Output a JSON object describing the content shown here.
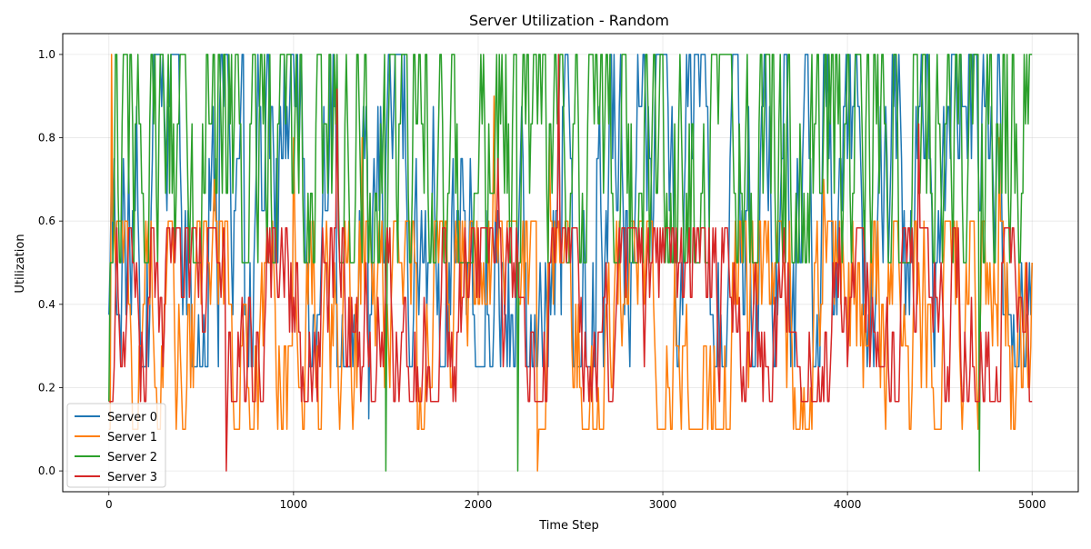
{
  "chart_data": {
    "type": "line",
    "title": "Server Utilization - Random",
    "xlabel": "Time Step",
    "ylabel": "Utilization",
    "xlim": [
      -250,
      5250
    ],
    "ylim": [
      -0.05,
      1.05
    ],
    "xticks": [
      0,
      1000,
      2000,
      3000,
      4000,
      5000
    ],
    "yticks": [
      0.0,
      0.2,
      0.4,
      0.6,
      0.8,
      1.0
    ],
    "xtick_labels": [
      "0",
      "1000",
      "2000",
      "3000",
      "4000",
      "5000"
    ],
    "ytick_labels": [
      "0.0",
      "0.2",
      "0.4",
      "0.6",
      "0.8",
      "1.0"
    ],
    "grid": true,
    "legend_position": "lower-left",
    "x_range": [
      0,
      5000
    ],
    "series": [
      {
        "name": "Server 0",
        "color": "#1f77b4",
        "levels": [
          0.0,
          0.125,
          0.25,
          0.375,
          0.5,
          0.625,
          0.75,
          0.875,
          1.0
        ],
        "typical_range": [
          0.25,
          1.0
        ],
        "start_value": 0.375
      },
      {
        "name": "Server 1",
        "color": "#ff7f0e",
        "levels": [
          0.0,
          0.1,
          0.2,
          0.3,
          0.4,
          0.5,
          0.6,
          0.7,
          0.8,
          0.9,
          1.0
        ],
        "typical_range": [
          0.1,
          0.6
        ],
        "start_value": 0.1
      },
      {
        "name": "Server 2",
        "color": "#2ca02c",
        "levels": [
          0.0,
          0.1667,
          0.3333,
          0.5,
          0.6667,
          0.8333,
          1.0
        ],
        "typical_range": [
          0.5,
          1.0
        ],
        "start_value": 0.1667
      },
      {
        "name": "Server 3",
        "color": "#d62728",
        "levels": [
          0.0,
          0.0833,
          0.1667,
          0.25,
          0.3333,
          0.4167,
          0.5,
          0.5833,
          0.6667,
          0.75,
          0.8333,
          0.9167,
          1.0
        ],
        "typical_range": [
          0.1667,
          0.5833
        ],
        "start_value": 0.1667
      }
    ]
  }
}
